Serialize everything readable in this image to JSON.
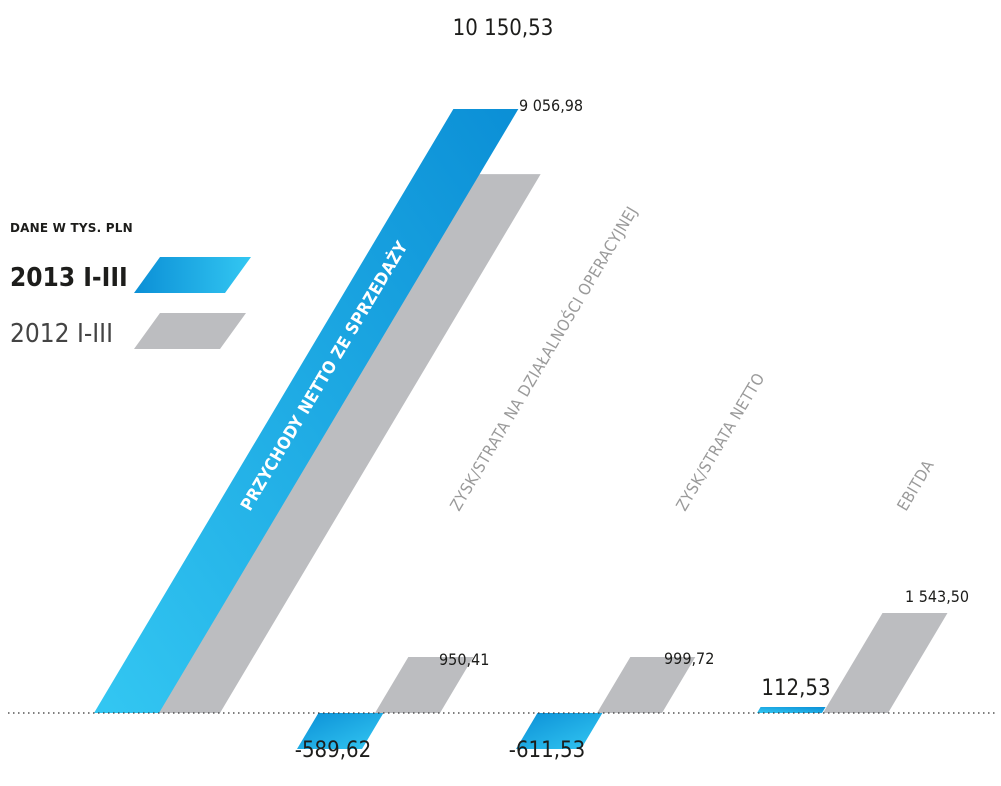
{
  "chart_data": {
    "type": "bar",
    "unit_label": "DANE W TYS. PLN",
    "series": [
      {
        "name": "2013 I-III",
        "values": [
          10150.53,
          -589.62,
          -611.53,
          112.53
        ]
      },
      {
        "name": "2012 I-III",
        "values": [
          9056.98,
          950.41,
          999.72,
          1543.5
        ]
      }
    ],
    "categories": [
      "PRZYCHODY NETTO ZE SPRZEDAŻY",
      "ZYSK/STRATA NA DZIAŁALNOŚCI OPERACYJNEJ",
      "ZYSK/STRATA NETTO",
      "EBITDA"
    ],
    "value_labels": {
      "2013 I-III": [
        "10 150,53",
        "-589,62",
        "-611,53",
        "112,53"
      ],
      "2012 I-III": [
        "9 056,98",
        "950,41",
        "999,72",
        "1 543,50"
      ]
    },
    "colors": {
      "2013_light": "#33c7f2",
      "2013_dark": "#0b8fd6",
      "2012": "#bcbdc0",
      "axis": "#333333",
      "text": "#1d1d1b",
      "category_text": "#9a9a9a",
      "category_text_highlight": "#ffffff"
    },
    "baseline": "dotted",
    "legend_position": "left"
  }
}
